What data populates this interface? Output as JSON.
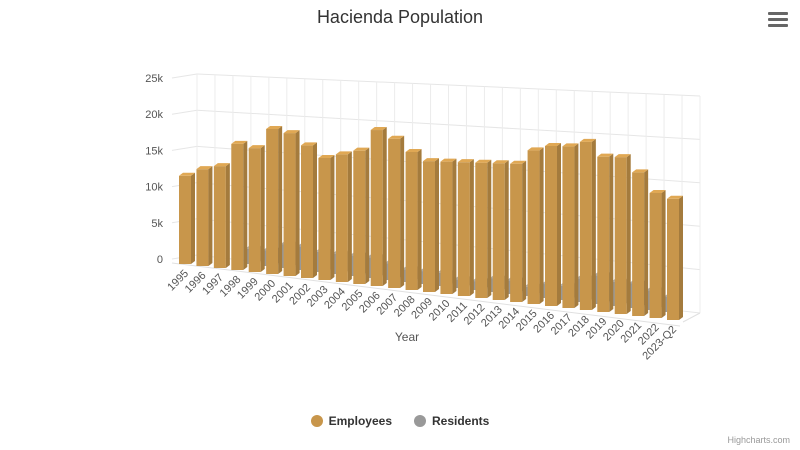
{
  "chart_data": {
    "type": "bar",
    "title": "Hacienda Population",
    "xlabel": "Year",
    "ylabel": "",
    "ylim": [
      0,
      25000
    ],
    "yticks": [
      "0",
      "5k",
      "10k",
      "15k",
      "20k",
      "25k"
    ],
    "categories": [
      "1995",
      "1996",
      "1997",
      "1998",
      "1999",
      "2000",
      "2001",
      "2002",
      "2003",
      "2004",
      "2005",
      "2006",
      "2007",
      "2008",
      "2009",
      "2010",
      "2011",
      "2012",
      "2013",
      "2014",
      "2015",
      "2016",
      "2017",
      "2018",
      "2019",
      "2020",
      "2021",
      "2022",
      "2023-Q2"
    ],
    "series": [
      {
        "name": "Employees",
        "color": "#c8964b",
        "values": [
          12000,
          13000,
          13500,
          16500,
          16000,
          18500,
          18000,
          16500,
          15000,
          15500,
          16000,
          18500,
          17500,
          16000,
          15000,
          15000,
          15000,
          15000,
          15000,
          15000,
          16500,
          17000,
          17000,
          17500,
          16000,
          16000,
          14500,
          12500,
          12000
        ]
      },
      {
        "name": "Residents",
        "color": "#999999",
        "values": [
          0,
          0,
          0,
          2000,
          2000,
          3000,
          3000,
          2500,
          2500,
          2500,
          2500,
          2000,
          1500,
          1500,
          1500,
          1000,
          1000,
          1500,
          1500,
          1000,
          1500,
          1500,
          2500,
          3000,
          2500,
          2500,
          2000,
          1500,
          0
        ]
      }
    ],
    "grid": true,
    "legend_position": "bottom-center"
  },
  "ui": {
    "menu_icon": "hamburger-menu-icon",
    "credits": "Highcharts.com"
  }
}
